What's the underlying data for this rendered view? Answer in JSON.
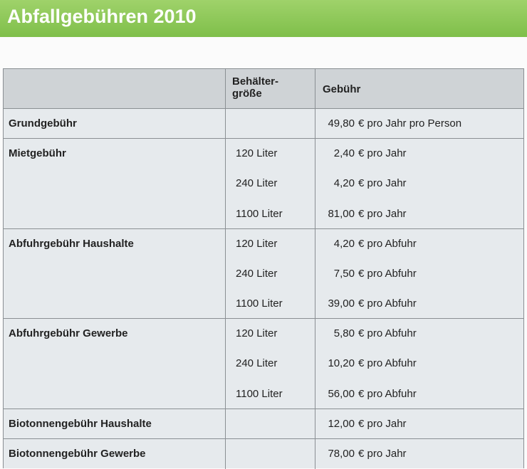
{
  "header": {
    "title": "Abfallgebühren 2010"
  },
  "table": {
    "columns": {
      "size": "Behälter-\ngröße",
      "fee": "Gebühr"
    },
    "rows": [
      {
        "label": "Grundgebühr",
        "items": [
          {
            "amount": "49,80",
            "unit": "€ pro Jahr pro Person"
          }
        ]
      },
      {
        "label": "Mietgebühr",
        "items": [
          {
            "size": "120 Liter",
            "amount": "2,40",
            "unit": "€ pro Jahr"
          },
          {
            "size": "240 Liter",
            "amount": "4,20",
            "unit": "€ pro Jahr"
          },
          {
            "size": "1100 Liter",
            "amount": "81,00",
            "unit": "€ pro Jahr"
          }
        ]
      },
      {
        "label": "Abfuhrgebühr Haushalte",
        "items": [
          {
            "size": "120 Liter",
            "amount": "4,20",
            "unit": "€ pro Abfuhr"
          },
          {
            "size": "240 Liter",
            "amount": "7,50",
            "unit": "€ pro Abfuhr"
          },
          {
            "size": "1100 Liter",
            "amount": "39,00",
            "unit": "€ pro Abfuhr"
          }
        ]
      },
      {
        "label": "Abfuhrgebühr Gewerbe",
        "items": [
          {
            "size": "120 Liter",
            "amount": "5,80",
            "unit": "€ pro Abfuhr"
          },
          {
            "size": "240 Liter",
            "amount": "10,20",
            "unit": "€ pro Abfuhr"
          },
          {
            "size": "1100 Liter",
            "amount": "56,00",
            "unit": "€ pro Abfuhr"
          }
        ]
      },
      {
        "label": "Biotonnengebühr Haushalte",
        "items": [
          {
            "amount": "12,00",
            "unit": "€ pro Jahr"
          }
        ]
      },
      {
        "label": "Biotonnengebühr Gewerbe",
        "items": [
          {
            "amount": "78,00",
            "unit": "€ pro Jahr"
          }
        ]
      }
    ]
  }
}
